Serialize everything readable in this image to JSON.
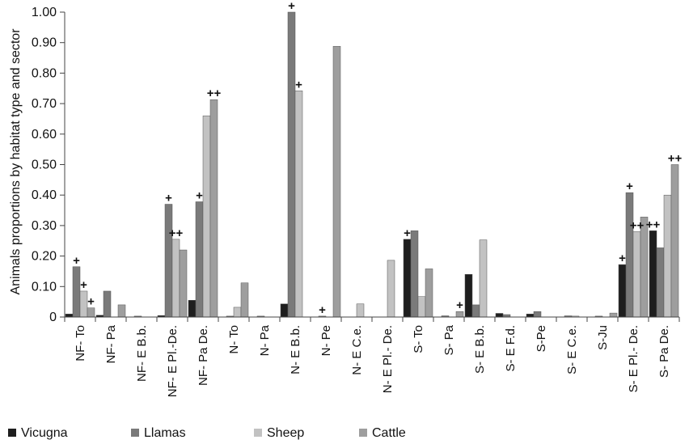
{
  "chart_data": {
    "type": "bar",
    "title": "",
    "ylabel": "Animals proportions by habitat type and sector",
    "xlabel": "",
    "ylim": [
      0,
      1.0
    ],
    "yticks": [
      "0",
      "0.10",
      "0.20",
      "0.30",
      "0.40",
      "0.50",
      "0.60",
      "0.70",
      "0.80",
      "0.90",
      "1.00"
    ],
    "grid": false,
    "legend_position": "bottom-left",
    "categories": [
      "NF- To",
      "NF- Pa",
      "NF- E B.b.",
      "NF- E Pl.-De.",
      "NF- Pa De.",
      "N- To",
      "N- Pa",
      "N- E B.b.",
      "N- Pe",
      "N- E C.e.",
      "N- E Pl.- De.",
      "S- To",
      "S- Pa",
      "S- E B.b.",
      "S- E F.d.",
      "S-Pe",
      "S- E C.e.",
      "S-Ju",
      "S- E Pl.- De.",
      "S- Pa De."
    ],
    "series": [
      {
        "name": "Vicugna",
        "color": "#1e1e1e",
        "values": [
          0.01,
          0.006,
          0,
          0.005,
          0.055,
          0,
          0,
          0.043,
          0,
          0,
          0,
          0.255,
          0,
          0.14,
          0.012,
          0.01,
          0,
          0,
          0.172,
          0.283
        ],
        "marks": [
          "",
          "",
          "",
          "",
          "",
          "",
          "",
          "",
          "",
          "",
          "",
          "+",
          "",
          "",
          "",
          "",
          "",
          "",
          "+",
          "++"
        ]
      },
      {
        "name": "Llamas",
        "color": "#7a7a7a",
        "values": [
          0.165,
          0.085,
          0.003,
          0.37,
          0.378,
          0.003,
          0.003,
          1.0,
          0.003,
          0,
          0,
          0.283,
          0.004,
          0.04,
          0.008,
          0.018,
          0.004,
          0.003,
          0.408,
          0.227
        ],
        "marks": [
          "+",
          "",
          "",
          "+",
          "+",
          "",
          "",
          "+",
          "+",
          "",
          "",
          "",
          "",
          "",
          "",
          "",
          "",
          "",
          "+",
          ""
        ]
      },
      {
        "name": "Sheep",
        "color": "#c2c2c2",
        "values": [
          0.085,
          0,
          0,
          0.255,
          0.66,
          0.032,
          0,
          0.742,
          0,
          0.043,
          0.186,
          0.067,
          0,
          0.253,
          0,
          0,
          0.003,
          0,
          0.28,
          0.4
        ],
        "marks": [
          "+",
          "",
          "",
          "++",
          "",
          "",
          "",
          "+",
          "",
          "",
          "",
          "",
          "",
          "",
          "",
          "",
          "",
          "",
          "++",
          ""
        ]
      },
      {
        "name": "Cattle",
        "color": "#9e9e9e",
        "values": [
          0.03,
          0.04,
          0,
          0.22,
          0.713,
          0.112,
          0,
          0,
          0.888,
          0,
          0,
          0.158,
          0.018,
          0,
          0,
          0,
          0,
          0.013,
          0.328,
          0.5
        ],
        "marks": [
          "+",
          "",
          "",
          "",
          "++",
          "",
          "",
          "",
          "",
          "",
          "",
          "",
          "+",
          "",
          "",
          "",
          "",
          "",
          "",
          "++"
        ]
      }
    ]
  }
}
